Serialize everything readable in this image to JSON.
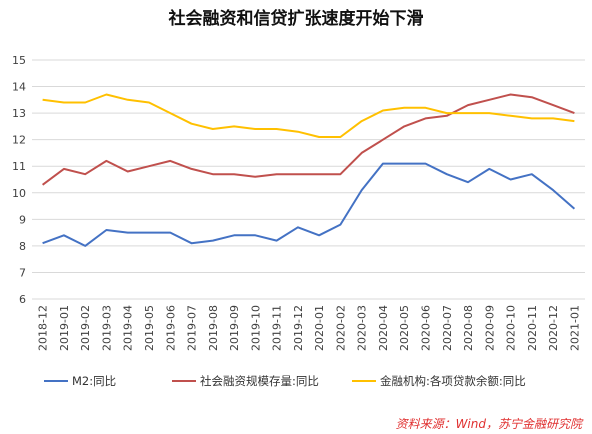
{
  "chart_data": {
    "type": "line",
    "title": "社会融资和信贷扩张速度开始下滑",
    "xlabel": "",
    "ylabel": "",
    "ylim": [
      6,
      15
    ],
    "yticks": [
      6,
      7,
      8,
      9,
      10,
      11,
      12,
      13,
      14,
      15
    ],
    "grid": "horizontal",
    "legend_position": "bottom",
    "categories": [
      "2018-12",
      "2019-01",
      "2019-02",
      "2019-03",
      "2019-04",
      "2019-05",
      "2019-06",
      "2019-07",
      "2019-08",
      "2019-09",
      "2019-10",
      "2019-11",
      "2019-12",
      "2020-01",
      "2020-02",
      "2020-03",
      "2020-04",
      "2020-05",
      "2020-06",
      "2020-07",
      "2020-08",
      "2020-09",
      "2020-10",
      "2020-11",
      "2020-12",
      "2021-01"
    ],
    "series": [
      {
        "name": "M2:同比",
        "color": "#4472c4",
        "values": [
          8.1,
          8.4,
          8.0,
          8.6,
          8.5,
          8.5,
          8.5,
          8.1,
          8.2,
          8.4,
          8.4,
          8.2,
          8.7,
          8.4,
          8.8,
          10.1,
          11.1,
          11.1,
          11.1,
          10.7,
          10.4,
          10.9,
          10.5,
          10.7,
          10.1,
          9.4
        ]
      },
      {
        "name": "社会融资规模存量:同比",
        "color": "#c0504d",
        "values": [
          10.3,
          10.9,
          10.7,
          11.2,
          10.8,
          11.0,
          11.2,
          10.9,
          10.7,
          10.7,
          10.6,
          10.7,
          10.7,
          10.7,
          10.7,
          11.5,
          12.0,
          12.5,
          12.8,
          12.9,
          13.3,
          13.5,
          13.7,
          13.6,
          13.3,
          13.0
        ]
      },
      {
        "name": "金融机构:各项贷款余额:同比",
        "color": "#ffc000",
        "values": [
          13.5,
          13.4,
          13.4,
          13.7,
          13.5,
          13.4,
          13.0,
          12.6,
          12.4,
          12.5,
          12.4,
          12.4,
          12.3,
          12.1,
          12.1,
          12.7,
          13.1,
          13.2,
          13.2,
          13.0,
          13.0,
          13.0,
          12.9,
          12.8,
          12.8,
          12.7
        ]
      }
    ],
    "source": "资料来源：Wind，苏宁金融研究院"
  }
}
